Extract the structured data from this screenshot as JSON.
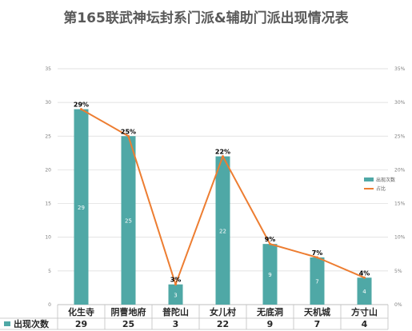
{
  "chart_data": {
    "type": "bar",
    "title": "第165联武神坛封系门派&辅助门派出现情况表",
    "categories": [
      "化生寺",
      "阴曹地府",
      "普陀山",
      "女儿村",
      "无底洞",
      "天机城",
      "方寸山"
    ],
    "series": [
      {
        "name": "出现次数",
        "kind": "bar",
        "axis": "left",
        "color": "#4fa8a6",
        "values": [
          29,
          25,
          3,
          22,
          9,
          7,
          4
        ],
        "labels": [
          "29",
          "25",
          "3",
          "22",
          "9",
          "7",
          "4"
        ]
      },
      {
        "name": "占比",
        "kind": "line",
        "axis": "right",
        "color": "#ed7d31",
        "values": [
          29,
          25,
          3,
          22,
          9,
          7,
          4
        ],
        "labels": [
          "29%",
          "25%",
          "3%",
          "22%",
          "9%",
          "7%",
          "4%"
        ]
      }
    ],
    "ylim": [
      0,
      35
    ],
    "y_ticks": [
      "0",
      "5",
      "10",
      "15",
      "20",
      "25",
      "30",
      "35"
    ],
    "y2lim": [
      0,
      35
    ],
    "y2_ticks": [
      "0%",
      "5%",
      "10%",
      "15%",
      "20%",
      "25%",
      "30%",
      "35%"
    ],
    "grid": true,
    "legend": "right",
    "data_table": {
      "row_label": "出现次数",
      "values": [
        "29",
        "25",
        "3",
        "22",
        "9",
        "7",
        "4"
      ]
    }
  }
}
